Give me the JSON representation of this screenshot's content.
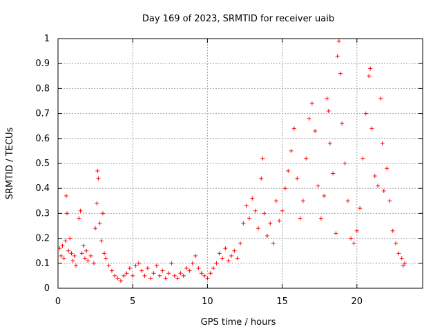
{
  "chart_data": {
    "type": "scatter",
    "title": "Day 169 of 2023, SRMTID for receiver uaib",
    "xlabel": "GPS time / hours",
    "ylabel": "SRMTID / TECUs",
    "xlim": [
      0,
      24.4
    ],
    "ylim": [
      0,
      1
    ],
    "xticks": [
      0,
      5,
      10,
      15,
      20
    ],
    "xtick_labels": [
      "0",
      "5",
      "10",
      "15",
      "20"
    ],
    "yticks": [
      0,
      0.1,
      0.2,
      0.3,
      0.4,
      0.5,
      0.6,
      0.7,
      0.8,
      0.9,
      1
    ],
    "ytick_labels": [
      "0",
      "0.1",
      "0.2",
      "0.3",
      "0.4",
      "0.5",
      "0.6",
      "0.7",
      "0.8",
      "0.9",
      "1"
    ],
    "grid": true,
    "marker": "+",
    "series_color": "#ff0000",
    "series": [
      {
        "name": "SRMTID",
        "points": [
          [
            0.1,
            0.16
          ],
          [
            0.2,
            0.13
          ],
          [
            0.3,
            0.17
          ],
          [
            0.4,
            0.12
          ],
          [
            0.5,
            0.19
          ],
          [
            0.55,
            0.37
          ],
          [
            0.6,
            0.3
          ],
          [
            0.7,
            0.15
          ],
          [
            0.8,
            0.2
          ],
          [
            0.9,
            0.14
          ],
          [
            1.0,
            0.11
          ],
          [
            1.1,
            0.13
          ],
          [
            1.2,
            0.09
          ],
          [
            1.4,
            0.28
          ],
          [
            1.5,
            0.31
          ],
          [
            1.6,
            0.14
          ],
          [
            1.7,
            0.17
          ],
          [
            1.8,
            0.12
          ],
          [
            1.9,
            0.15
          ],
          [
            2.0,
            0.11
          ],
          [
            2.2,
            0.13
          ],
          [
            2.4,
            0.1
          ],
          [
            2.5,
            0.24
          ],
          [
            2.6,
            0.34
          ],
          [
            2.65,
            0.47
          ],
          [
            2.7,
            0.44
          ],
          [
            2.8,
            0.26
          ],
          [
            2.9,
            0.19
          ],
          [
            3.0,
            0.3
          ],
          [
            3.1,
            0.14
          ],
          [
            3.2,
            0.12
          ],
          [
            3.4,
            0.09
          ],
          [
            3.6,
            0.07
          ],
          [
            3.8,
            0.05
          ],
          [
            4.0,
            0.04
          ],
          [
            4.2,
            0.03
          ],
          [
            4.4,
            0.05
          ],
          [
            4.6,
            0.06
          ],
          [
            4.8,
            0.08
          ],
          [
            5.0,
            0.05
          ],
          [
            5.2,
            0.09
          ],
          [
            5.4,
            0.1
          ],
          [
            5.6,
            0.07
          ],
          [
            5.8,
            0.05
          ],
          [
            6.0,
            0.08
          ],
          [
            6.2,
            0.04
          ],
          [
            6.4,
            0.06
          ],
          [
            6.6,
            0.09
          ],
          [
            6.8,
            0.05
          ],
          [
            7.0,
            0.07
          ],
          [
            7.2,
            0.04
          ],
          [
            7.4,
            0.06
          ],
          [
            7.6,
            0.1
          ],
          [
            7.8,
            0.05
          ],
          [
            8.0,
            0.04
          ],
          [
            8.2,
            0.06
          ],
          [
            8.4,
            0.05
          ],
          [
            8.6,
            0.08
          ],
          [
            8.8,
            0.07
          ],
          [
            9.0,
            0.1
          ],
          [
            9.2,
            0.13
          ],
          [
            9.4,
            0.08
          ],
          [
            9.6,
            0.06
          ],
          [
            9.8,
            0.05
          ],
          [
            10.0,
            0.04
          ],
          [
            10.2,
            0.06
          ],
          [
            10.4,
            0.08
          ],
          [
            10.6,
            0.1
          ],
          [
            10.8,
            0.14
          ],
          [
            11.0,
            0.12
          ],
          [
            11.2,
            0.16
          ],
          [
            11.4,
            0.11
          ],
          [
            11.6,
            0.13
          ],
          [
            11.8,
            0.15
          ],
          [
            12.0,
            0.12
          ],
          [
            12.2,
            0.18
          ],
          [
            12.4,
            0.26
          ],
          [
            12.6,
            0.33
          ],
          [
            12.8,
            0.28
          ],
          [
            13.0,
            0.36
          ],
          [
            13.2,
            0.31
          ],
          [
            13.4,
            0.24
          ],
          [
            13.6,
            0.44
          ],
          [
            13.7,
            0.52
          ],
          [
            13.8,
            0.3
          ],
          [
            14.0,
            0.21
          ],
          [
            14.2,
            0.26
          ],
          [
            14.4,
            0.18
          ],
          [
            14.6,
            0.35
          ],
          [
            14.8,
            0.27
          ],
          [
            15.0,
            0.31
          ],
          [
            15.2,
            0.4
          ],
          [
            15.4,
            0.47
          ],
          [
            15.6,
            0.55
          ],
          [
            15.8,
            0.64
          ],
          [
            16.0,
            0.44
          ],
          [
            16.2,
            0.28
          ],
          [
            16.4,
            0.35
          ],
          [
            16.6,
            0.52
          ],
          [
            16.8,
            0.68
          ],
          [
            17.0,
            0.74
          ],
          [
            17.2,
            0.63
          ],
          [
            17.4,
            0.41
          ],
          [
            17.6,
            0.28
          ],
          [
            17.8,
            0.37
          ],
          [
            18.0,
            0.76
          ],
          [
            18.1,
            0.71
          ],
          [
            18.2,
            0.58
          ],
          [
            18.4,
            0.46
          ],
          [
            18.6,
            0.22
          ],
          [
            18.7,
            0.93
          ],
          [
            18.8,
            0.99
          ],
          [
            18.9,
            0.86
          ],
          [
            19.0,
            0.66
          ],
          [
            19.2,
            0.5
          ],
          [
            19.4,
            0.35
          ],
          [
            19.6,
            0.2
          ],
          [
            19.8,
            0.18
          ],
          [
            20.0,
            0.23
          ],
          [
            20.2,
            0.32
          ],
          [
            20.4,
            0.52
          ],
          [
            20.6,
            0.7
          ],
          [
            20.8,
            0.85
          ],
          [
            20.9,
            0.88
          ],
          [
            21.0,
            0.64
          ],
          [
            21.2,
            0.45
          ],
          [
            21.4,
            0.41
          ],
          [
            21.6,
            0.76
          ],
          [
            21.7,
            0.58
          ],
          [
            21.8,
            0.39
          ],
          [
            22.0,
            0.48
          ],
          [
            22.2,
            0.35
          ],
          [
            22.4,
            0.23
          ],
          [
            22.6,
            0.18
          ],
          [
            22.8,
            0.14
          ],
          [
            23.0,
            0.12
          ],
          [
            23.1,
            0.09
          ],
          [
            23.2,
            0.1
          ]
        ]
      }
    ]
  }
}
